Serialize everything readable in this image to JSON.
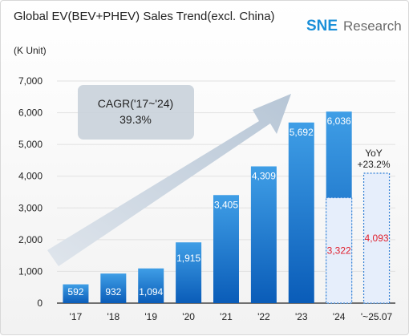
{
  "title": "Global EV(BEV+PHEV) Sales Trend(excl. China)",
  "logo": {
    "mark": "SNE",
    "text": "Research",
    "mark_color": "#1a8fd8",
    "text_color": "#6b6b6b"
  },
  "chart_data": {
    "type": "bar",
    "unit_label": "(K Unit)",
    "categories": [
      "'17",
      "'18",
      "'19",
      "'20",
      "'21",
      "'22",
      "'23",
      "'24",
      "'~25.07"
    ],
    "values": [
      592,
      932,
      1094,
      1915,
      3405,
      4309,
      5692,
      6036,
      4093
    ],
    "value_labels": [
      "592",
      "932",
      "1,094",
      "1,915",
      "3,405",
      "4,309",
      "5,692",
      "6,036",
      "4,093"
    ],
    "ylim": [
      0,
      7000
    ],
    "yticks": [
      0,
      1000,
      2000,
      3000,
      4000,
      5000,
      6000,
      7000
    ],
    "ytick_labels": [
      "0",
      "1,000",
      "2,000",
      "3,000",
      "4,000",
      "5,000",
      "6,000",
      "7,000"
    ],
    "grid": true,
    "partial": [
      {
        "category": "'24",
        "value": 3322,
        "label": "3,322"
      },
      {
        "category": "'~25.07",
        "value": 4093,
        "label": "4,093"
      }
    ],
    "annotations": {
      "cagr": {
        "line1": "CAGR('17~'24)",
        "line2": "39.3%"
      },
      "yoy": {
        "line1": "YoY",
        "line2": "+23.2%"
      }
    },
    "colors": {
      "bar_top": "#3f9ee6",
      "bar_bottom": "#0a5cb8",
      "partial_fill": "#e6eefb",
      "partial_border": "#2f7fd6",
      "partial_label": "#e0202e",
      "axis": "#222222",
      "grid": "#e1e1e1",
      "arrow": "#c8d3e0",
      "cagr_box": "#c9d2da"
    }
  }
}
